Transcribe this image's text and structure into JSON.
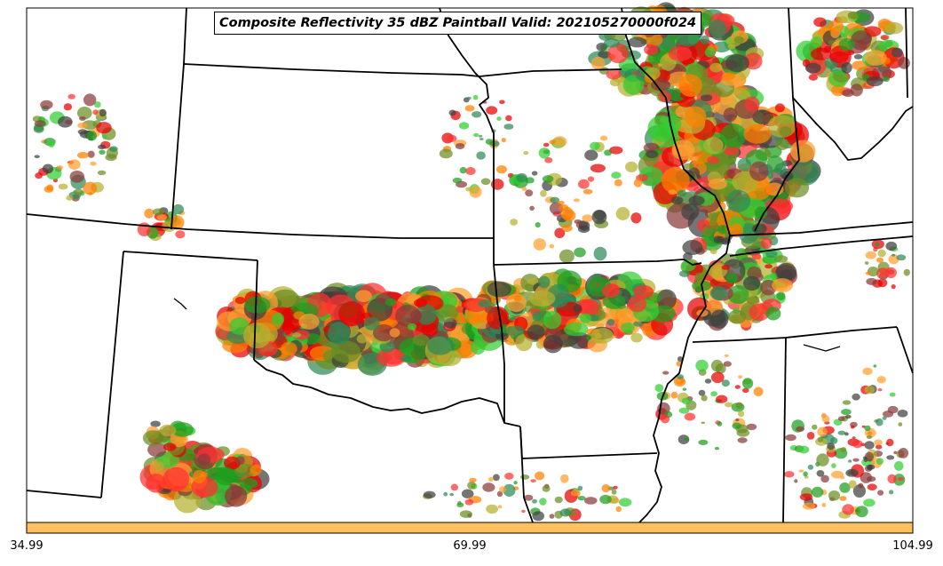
{
  "title": "Composite Reflectivity 35 dBZ Paintball Valid: 202105270000f024",
  "colorbar": {
    "ticks": [
      "34.99",
      "69.99",
      "104.99"
    ],
    "color": "#ffc060"
  },
  "paint_colors": [
    "#ff3030",
    "#e60000",
    "#8b3a3a",
    "#ff7f00",
    "#ffa030",
    "#b5b030",
    "#6b8e23",
    "#32cd32",
    "#1e9e1e",
    "#2e8b57",
    "#404040"
  ]
}
